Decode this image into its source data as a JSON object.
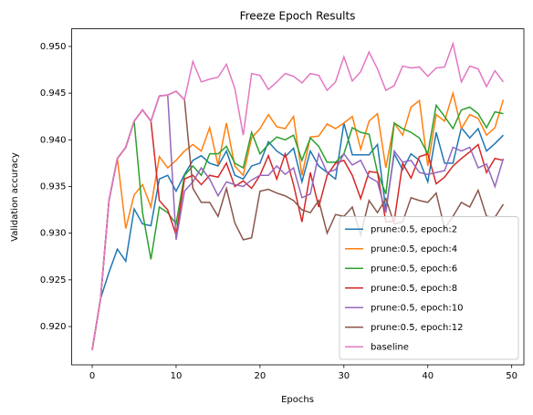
{
  "chart_data": {
    "type": "line",
    "title": "Freeze Epoch Results",
    "x_label": "Epochs",
    "y_label": "Validation accuracy",
    "x": [
      0,
      1,
      2,
      3,
      4,
      5,
      6,
      7,
      8,
      9,
      10,
      11,
      12,
      13,
      14,
      15,
      16,
      17,
      18,
      19,
      20,
      21,
      22,
      23,
      24,
      25,
      26,
      27,
      28,
      29,
      30,
      31,
      32,
      33,
      34,
      35,
      36,
      37,
      38,
      39,
      40,
      41,
      42,
      43,
      44,
      45,
      46,
      47,
      48,
      49
    ],
    "xlim": [
      -2.45,
      51.45
    ],
    "xticks": [
      0,
      10,
      20,
      30,
      40,
      50
    ],
    "ylim": [
      0.9159,
      0.9519
    ],
    "yticks": [
      {
        "value": 0.92,
        "label": "0.920"
      },
      {
        "value": 0.925,
        "label": "0.925"
      },
      {
        "value": 0.93,
        "label": "0.930"
      },
      {
        "value": 0.935,
        "label": "0.935"
      },
      {
        "value": 0.94,
        "label": "0.940"
      },
      {
        "value": 0.945,
        "label": "0.945"
      },
      {
        "value": 0.95,
        "label": "0.950"
      }
    ],
    "grid": false,
    "legend": "lower right",
    "series": [
      {
        "name": "prune:0.5, epoch:2",
        "color": "#1f77b4",
        "values": [
          0.9175,
          0.923,
          0.9258,
          0.9283,
          0.927,
          0.9326,
          0.931,
          0.9308,
          0.9358,
          0.9362,
          0.9345,
          0.9363,
          0.9378,
          0.9383,
          0.9375,
          0.9372,
          0.9388,
          0.9362,
          0.9358,
          0.9372,
          0.9375,
          0.9398,
          0.9388,
          0.9382,
          0.9391,
          0.9355,
          0.9388,
          0.9372,
          0.9365,
          0.9358,
          0.9418,
          0.9384,
          0.9384,
          0.9384,
          0.9395,
          0.9325,
          0.9385,
          0.9368,
          0.9385,
          0.9378,
          0.9355,
          0.9408,
          0.9375,
          0.9375,
          0.9413,
          0.9402,
          0.9412,
          0.9388,
          0.9396,
          0.9405
        ]
      },
      {
        "name": "prune:0.5, epoch:4",
        "color": "#ff7f0e",
        "values": [
          0.9175,
          0.923,
          0.9335,
          0.938,
          0.9305,
          0.9341,
          0.9352,
          0.9328,
          0.9382,
          0.937,
          0.9378,
          0.9388,
          0.9395,
          0.9388,
          0.9413,
          0.9373,
          0.9418,
          0.9372,
          0.9362,
          0.9402,
          0.9412,
          0.9427,
          0.9414,
          0.9412,
          0.9425,
          0.9362,
          0.9403,
          0.9404,
          0.9417,
          0.9412,
          0.9418,
          0.9425,
          0.939,
          0.942,
          0.9428,
          0.937,
          0.9418,
          0.9405,
          0.9435,
          0.9442,
          0.9372,
          0.9427,
          0.942,
          0.945,
          0.9412,
          0.9427,
          0.9423,
          0.9405,
          0.9413,
          0.9443
        ]
      },
      {
        "name": "prune:0.5, epoch:6",
        "color": "#2ca02c",
        "values": [
          0.9175,
          0.923,
          0.9335,
          0.938,
          0.9392,
          0.942,
          0.9322,
          0.9272,
          0.9328,
          0.9322,
          0.931,
          0.9362,
          0.9372,
          0.9362,
          0.9385,
          0.9385,
          0.9393,
          0.9375,
          0.937,
          0.9408,
          0.9385,
          0.9395,
          0.9403,
          0.94,
          0.9405,
          0.9378,
          0.9402,
          0.9393,
          0.9376,
          0.9376,
          0.9385,
          0.9413,
          0.9408,
          0.9406,
          0.9365,
          0.9342,
          0.9418,
          0.9412,
          0.9408,
          0.9402,
          0.9385,
          0.9437,
          0.9425,
          0.9412,
          0.9432,
          0.9435,
          0.9428,
          0.9413,
          0.943,
          0.9428
        ]
      },
      {
        "name": "prune:0.5, epoch:8",
        "color": "#d62728",
        "values": [
          0.9175,
          0.923,
          0.9335,
          0.938,
          0.9392,
          0.942,
          0.9432,
          0.942,
          0.9335,
          0.9325,
          0.9298,
          0.9358,
          0.9362,
          0.9352,
          0.9362,
          0.936,
          0.9375,
          0.935,
          0.9356,
          0.9348,
          0.9362,
          0.9383,
          0.9358,
          0.9385,
          0.9352,
          0.9312,
          0.9365,
          0.9328,
          0.9362,
          0.9375,
          0.9378,
          0.9362,
          0.9337,
          0.9366,
          0.9365,
          0.9312,
          0.9313,
          0.9375,
          0.9359,
          0.9382,
          0.9385,
          0.9353,
          0.936,
          0.9372,
          0.938,
          0.9387,
          0.9395,
          0.9365,
          0.938,
          0.9378
        ]
      },
      {
        "name": "prune:0.5, epoch:10",
        "color": "#9467bd",
        "values": [
          0.9175,
          0.923,
          0.9335,
          0.938,
          0.9392,
          0.942,
          0.9432,
          0.942,
          0.9447,
          0.9448,
          0.9293,
          0.9345,
          0.9355,
          0.937,
          0.9358,
          0.934,
          0.9355,
          0.9352,
          0.935,
          0.9357,
          0.9362,
          0.9362,
          0.9372,
          0.9363,
          0.937,
          0.9338,
          0.9342,
          0.9385,
          0.9365,
          0.9368,
          0.9385,
          0.9373,
          0.9378,
          0.936,
          0.9355,
          0.9322,
          0.9388,
          0.9376,
          0.9378,
          0.9365,
          0.9363,
          0.9365,
          0.9367,
          0.9392,
          0.9388,
          0.9392,
          0.937,
          0.9374,
          0.935,
          0.938
        ]
      },
      {
        "name": "prune:0.5, epoch:12",
        "color": "#8c564b",
        "values": [
          0.9175,
          0.923,
          0.9335,
          0.938,
          0.9392,
          0.942,
          0.9432,
          0.942,
          0.9447,
          0.9448,
          0.9452,
          0.9443,
          0.9348,
          0.9333,
          0.9333,
          0.9318,
          0.9348,
          0.9311,
          0.9293,
          0.9295,
          0.9345,
          0.9347,
          0.9343,
          0.934,
          0.9335,
          0.9325,
          0.9322,
          0.9335,
          0.93,
          0.932,
          0.9318,
          0.9328,
          0.9298,
          0.9335,
          0.9322,
          0.9337,
          0.931,
          0.9312,
          0.9338,
          0.9335,
          0.9333,
          0.9343,
          0.9305,
          0.9318,
          0.9333,
          0.9328,
          0.9346,
          0.9318,
          0.9317,
          0.9331
        ]
      },
      {
        "name": "baseline",
        "color": "#e377c2",
        "values": [
          0.9175,
          0.923,
          0.9335,
          0.938,
          0.9392,
          0.942,
          0.9432,
          0.942,
          0.9447,
          0.9448,
          0.9452,
          0.9443,
          0.9484,
          0.9462,
          0.9465,
          0.9467,
          0.9481,
          0.9455,
          0.9405,
          0.9471,
          0.9469,
          0.9454,
          0.9462,
          0.9471,
          0.9468,
          0.9461,
          0.9471,
          0.9469,
          0.9453,
          0.9462,
          0.9489,
          0.9463,
          0.9473,
          0.9494,
          0.9476,
          0.9453,
          0.9458,
          0.9479,
          0.9477,
          0.9478,
          0.9468,
          0.9477,
          0.9478,
          0.9503,
          0.9462,
          0.9479,
          0.9476,
          0.9457,
          0.9474,
          0.9462
        ]
      }
    ]
  }
}
